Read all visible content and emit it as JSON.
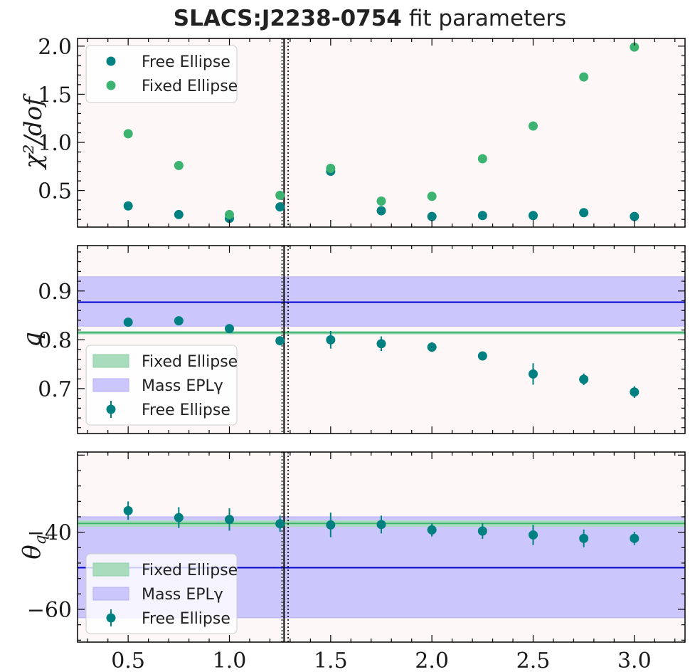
{
  "title": {
    "bold": "SLACS:J2238-0754",
    "rest": "fit parameters"
  },
  "colors": {
    "free": "#008080",
    "fixed": "#3cb371",
    "mass": "#0000cd",
    "band_mass": "#cbc6fb",
    "band_fixed": "#a8dcbc",
    "plot_bg": "#fdf8f7"
  },
  "chart_data": [
    {
      "type": "scatter",
      "ylabel": "χ²/dof",
      "xlim": [
        0.25,
        3.25
      ],
      "ylim": [
        0.12,
        2.08
      ],
      "xticks": [
        "0.5",
        "1.0",
        "1.5",
        "2.0",
        "2.5",
        "3.0"
      ],
      "yticks": [
        0.5,
        1.0,
        1.5,
        2.0
      ],
      "ytick_labels": [
        "0.5",
        "1.0",
        "1.5",
        "2.0"
      ],
      "vlines": {
        "solid": 1.27,
        "dotted": [
          1.26,
          1.29
        ]
      },
      "legend": {
        "position": "top-left",
        "entries": [
          "Free Ellipse",
          "Fixed Ellipse"
        ]
      },
      "x": [
        0.5,
        0.75,
        1.0,
        1.25,
        1.5,
        1.75,
        2.0,
        2.25,
        2.5,
        2.75,
        3.0
      ],
      "series": [
        {
          "name": "Free Ellipse",
          "values": [
            0.34,
            0.25,
            0.21,
            0.33,
            0.7,
            0.29,
            0.23,
            0.24,
            0.24,
            0.27,
            0.23
          ]
        },
        {
          "name": "Fixed Ellipse",
          "values": [
            1.09,
            0.76,
            0.25,
            0.45,
            0.73,
            0.39,
            0.44,
            0.83,
            1.17,
            1.68,
            1.99
          ]
        }
      ]
    },
    {
      "type": "scatter",
      "ylabel": "q",
      "xlim": [
        0.25,
        3.25
      ],
      "ylim": [
        0.608,
        0.993
      ],
      "yticks": [
        0.7,
        0.8,
        0.9
      ],
      "ytick_labels": [
        "0.7",
        "0.8",
        "0.9"
      ],
      "vlines": {
        "solid": 1.27,
        "dotted": [
          1.26,
          1.29
        ]
      },
      "legend": {
        "position": "lower-left",
        "entries": [
          "Fixed Ellipse",
          "Mass EPLγ",
          "Free Ellipse"
        ]
      },
      "mass_band": {
        "low": 0.828,
        "high": 0.929,
        "line": 0.877
      },
      "fixed_band": {
        "low": 0.811,
        "high": 0.818,
        "line": 0.8145
      },
      "x": [
        0.5,
        0.75,
        1.0,
        1.25,
        1.5,
        1.75,
        2.0,
        2.25,
        2.5,
        2.75,
        3.0
      ],
      "series": [
        {
          "name": "Free Ellipse",
          "values": [
            0.836,
            0.839,
            0.823,
            0.798,
            0.8,
            0.792,
            0.785,
            0.767,
            0.73,
            0.719,
            0.693
          ],
          "errors": [
            0.008,
            0.008,
            0.008,
            0.007,
            0.018,
            0.015,
            0.01,
            0.006,
            0.022,
            0.012,
            0.012
          ]
        }
      ]
    },
    {
      "type": "scatter",
      "ylabel": "θq",
      "xlim": [
        0.25,
        3.25
      ],
      "ylim": [
        -68.5,
        -19.2
      ],
      "yticks": [
        -40,
        -60
      ],
      "ytick_labels": [
        "−40",
        "−60"
      ],
      "vlines": {
        "solid": 1.27,
        "dotted": [
          1.26,
          1.29
        ]
      },
      "legend": {
        "position": "lower-left",
        "entries": [
          "Fixed Ellipse",
          "Mass EPLγ",
          "Free Ellipse"
        ]
      },
      "mass_band": {
        "low": -62.2,
        "high": -36.0,
        "line": -49.2
      },
      "fixed_band": {
        "low": -38.6,
        "high": -36.9,
        "line": -37.7
      },
      "x": [
        0.5,
        0.75,
        1.0,
        1.25,
        1.5,
        1.75,
        2.0,
        2.25,
        2.5,
        2.75,
        3.0
      ],
      "series": [
        {
          "name": "Free Ellipse",
          "values": [
            -34.4,
            -36.2,
            -36.7,
            -37.8,
            -38.1,
            -38.0,
            -39.4,
            -39.7,
            -40.7,
            -41.6,
            -41.6
          ],
          "errors": [
            2.4,
            2.7,
            2.9,
            2.1,
            3.2,
            2.3,
            1.7,
            2.0,
            2.6,
            2.3,
            1.7
          ]
        }
      ]
    }
  ]
}
